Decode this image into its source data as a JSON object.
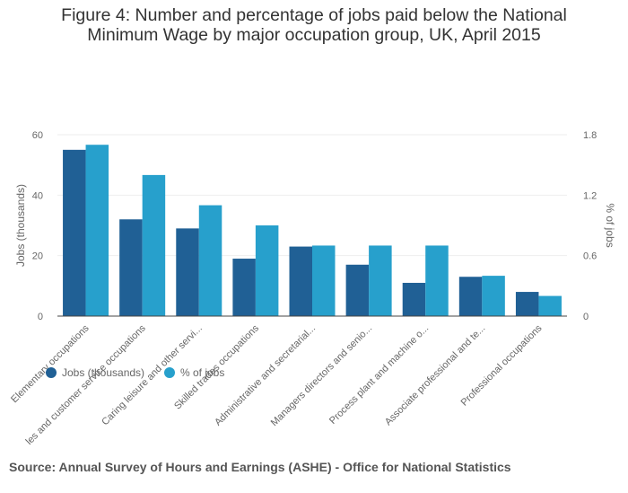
{
  "title_lines": [
    "Figure 4: Number and percentage of jobs paid below the National",
    "Minimum Wage by major occupation group, UK, April 2015"
  ],
  "source": "Source: Annual Survey of Hours and Earnings (ASHE) - Office for National Statistics",
  "colors": {
    "jobs": "#206095",
    "pct": "#27a0cc",
    "axis_text": "#666666",
    "grid": "#eeeeee"
  },
  "chart_data": {
    "type": "bar",
    "categories": [
      "Elementary occupations",
      "les and customer service occupations",
      "Caring leisure and other servi...",
      "Skilled trades occupations",
      "Administrative and secretarial...",
      "Managers directors and senio...",
      "Process plant and machine o...",
      "Associate professional and te...",
      "Professional occupations"
    ],
    "series": [
      {
        "name": "Jobs (thousands)",
        "axis": "left",
        "values": [
          55,
          32,
          29,
          19,
          23,
          17,
          11,
          13,
          8
        ]
      },
      {
        "name": "% of jobs",
        "axis": "right",
        "values": [
          1.7,
          1.4,
          1.1,
          0.9,
          0.7,
          0.7,
          0.7,
          0.4,
          0.2
        ]
      }
    ],
    "ylabel_left": "Jobs (thousands)",
    "ylabel_right": "% of jobs",
    "ylim_left": [
      0,
      60
    ],
    "ylim_right": [
      0,
      1.8
    ],
    "yticks_left": [
      "0",
      "20",
      "40",
      "60"
    ],
    "yticks_right": [
      "0",
      "0.6",
      "1.2",
      "1.8"
    ],
    "grid": true,
    "legend": "bottom-left"
  }
}
